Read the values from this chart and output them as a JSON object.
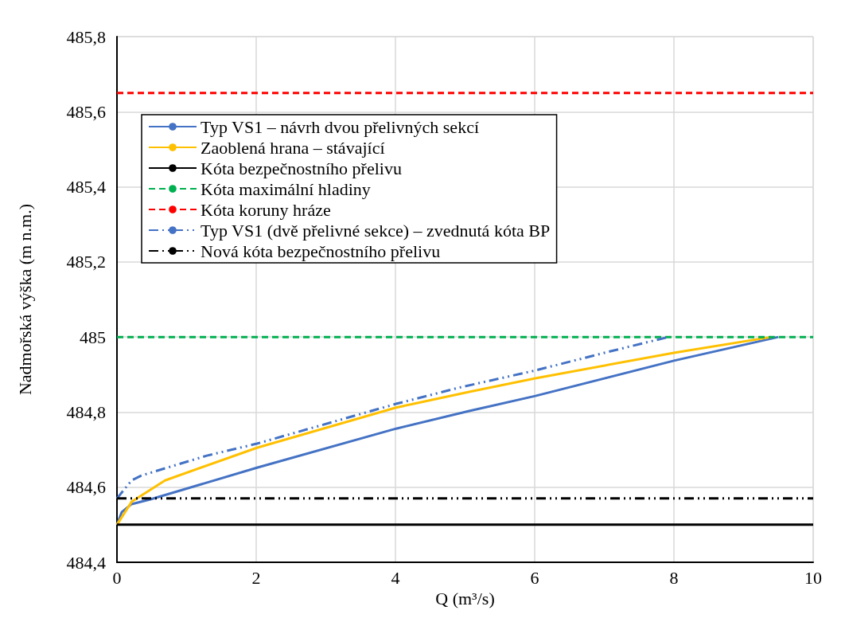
{
  "chart_data": {
    "type": "line",
    "xlabel": "Q (m³/s)",
    "ylabel": "Nadmořská výška (m n.m.)",
    "xlim": [
      0,
      10
    ],
    "xticks": [
      0,
      2,
      4,
      6,
      8,
      10
    ],
    "ylim": [
      484.4,
      485.8
    ],
    "yticks": [
      {
        "value": 484.4,
        "label": "484,4"
      },
      {
        "value": 484.6,
        "label": "484,6"
      },
      {
        "value": 484.8,
        "label": "484,8"
      },
      {
        "value": 485,
        "label": "485"
      },
      {
        "value": 485.2,
        "label": "485,2"
      },
      {
        "value": 485.4,
        "label": "485,4"
      },
      {
        "value": 485.6,
        "label": "485,6"
      },
      {
        "value": 485.8,
        "label": "485,8"
      }
    ],
    "grid": true,
    "legend": "top left",
    "marker": "none",
    "series": [
      {
        "name": "Typ VS1 – návrh dvou přelivných sekcí",
        "color": "#4472c4",
        "line_style": "solid",
        "x": [
          0,
          0.07,
          0.21,
          0.49,
          2.01,
          4.01,
          5.06,
          6.01,
          8.0,
          9.5
        ],
        "values": [
          484.5,
          484.534,
          484.555,
          484.568,
          484.652,
          484.756,
          484.803,
          484.843,
          484.937,
          485.0
        ]
      },
      {
        "name": "Zaoblená hrana – stávající",
        "color": "#ffc000",
        "line_style": "solid",
        "x": [
          0,
          0.21,
          0.69,
          2.01,
          4.01,
          5.06,
          6.01,
          8.0,
          9.4
        ],
        "values": [
          484.5,
          484.561,
          484.618,
          484.705,
          484.812,
          484.854,
          484.89,
          484.958,
          485.0
        ]
      },
      {
        "name": "Kóta bezpečnostního přelivu",
        "color": "#000000",
        "line_style": "solid",
        "x": [
          0,
          10
        ],
        "values": [
          484.5,
          484.5
        ]
      },
      {
        "name": "Kóta maximální hladiny",
        "color": "#00b050",
        "line_style": "dashed",
        "x": [
          0,
          10
        ],
        "values": [
          485.0,
          485.0
        ]
      },
      {
        "name": "Kóta koruny hráze",
        "color": "#ff0000",
        "line_style": "dashed",
        "x": [
          0,
          10
        ],
        "values": [
          485.65,
          485.65
        ]
      },
      {
        "name": "Typ VS1 (dvě přelivné sekce) – zvednutá kóta BP",
        "color": "#4472c4",
        "line_style": "dashdot",
        "x": [
          0,
          0.21,
          0.35,
          1.29,
          2.01,
          4.01,
          4.91,
          6.01,
          7.09,
          7.92
        ],
        "values": [
          484.57,
          484.618,
          484.631,
          484.684,
          484.716,
          484.822,
          484.865,
          484.911,
          484.962,
          485.0
        ]
      },
      {
        "name": "Nová kóta bezpečnostního přelivu",
        "color": "#000000",
        "line_style": "dashdot",
        "x": [
          0,
          10
        ],
        "values": [
          484.57,
          484.57
        ]
      }
    ]
  }
}
